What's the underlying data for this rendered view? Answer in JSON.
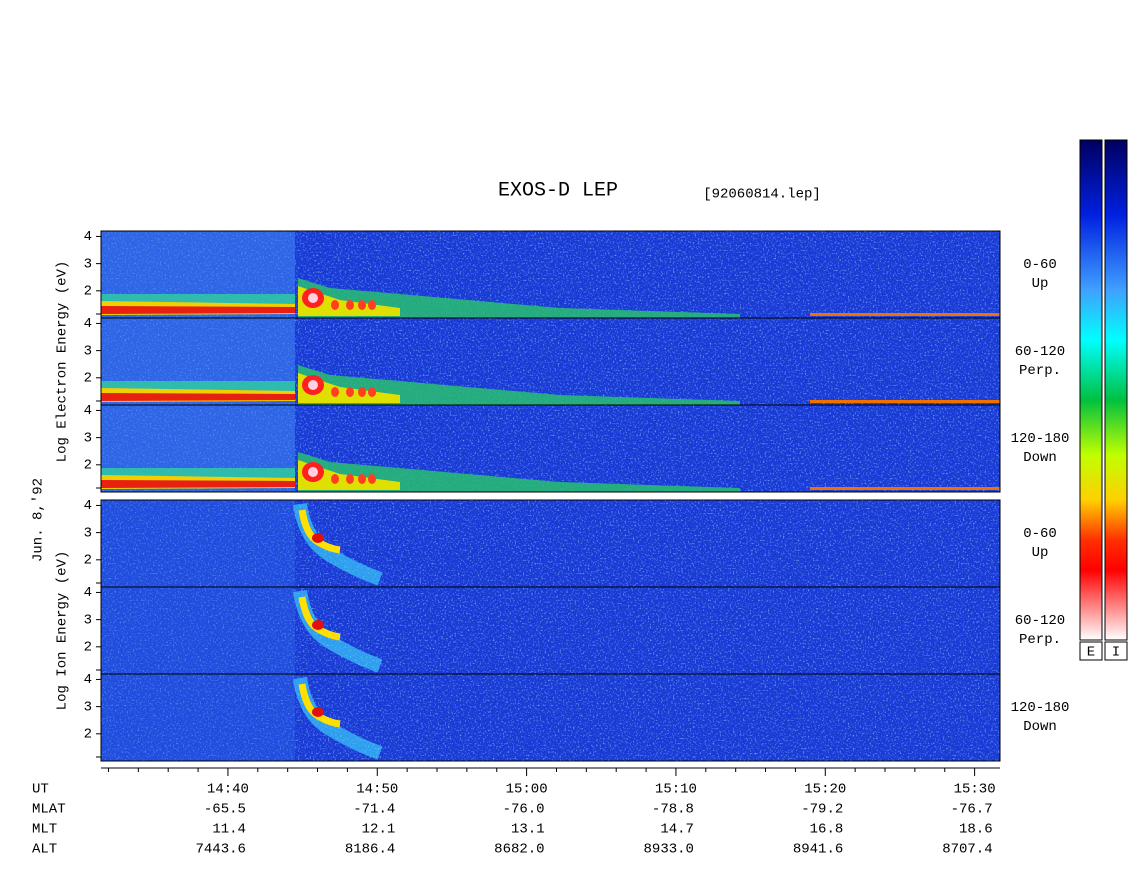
{
  "chart_data": {
    "type": "spectrogram",
    "title": "EXOS-D LEP",
    "subtitle": "[92060814.lep]",
    "date_label": "Jun. 8,'92",
    "groups": [
      {
        "ylabel": "Log  Electron  Energy (eV)"
      },
      {
        "ylabel": "Log  Ion  Energy (eV)"
      }
    ],
    "panels": [
      [
        "0-60",
        "Up"
      ],
      [
        "60-120",
        "Perp."
      ],
      [
        "120-180",
        "Down"
      ]
    ],
    "ylim": [
      1,
      4.2
    ],
    "yticks": [
      2,
      3,
      4
    ],
    "yminor": [
      1
    ],
    "xlim": [
      871.5,
      931.7
    ],
    "xticks": [
      {
        "value": 880,
        "label": "14:40"
      },
      {
        "value": 890,
        "label": "14:50"
      },
      {
        "value": 900,
        "label": "15:00"
      },
      {
        "value": 910,
        "label": "15:10"
      },
      {
        "value": 920,
        "label": "15:20"
      },
      {
        "value": 930,
        "label": "15:30"
      }
    ],
    "xminor": [
      872,
      874,
      876,
      878,
      882,
      884,
      886,
      888,
      892,
      894,
      896,
      898,
      902,
      904,
      906,
      908,
      912,
      914,
      916,
      918,
      922,
      924,
      926,
      928
    ],
    "ephemeris": [
      {
        "name": "UT"
      },
      {
        "name": "MLAT",
        "values": [
          "-65.5",
          "-71.4",
          "-76.0",
          "-78.8",
          "-79.2",
          "-76.7"
        ]
      },
      {
        "name": "MLT",
        "values": [
          "11.4",
          "12.1",
          "13.1",
          "14.7",
          "16.8",
          "18.6"
        ]
      },
      {
        "name": "ALT",
        "values": [
          "7443.6",
          "8186.4",
          "8682.0",
          "8933.0",
          "8941.6",
          "8707.4"
        ]
      }
    ],
    "colorbars": [
      "E",
      "I"
    ]
  }
}
